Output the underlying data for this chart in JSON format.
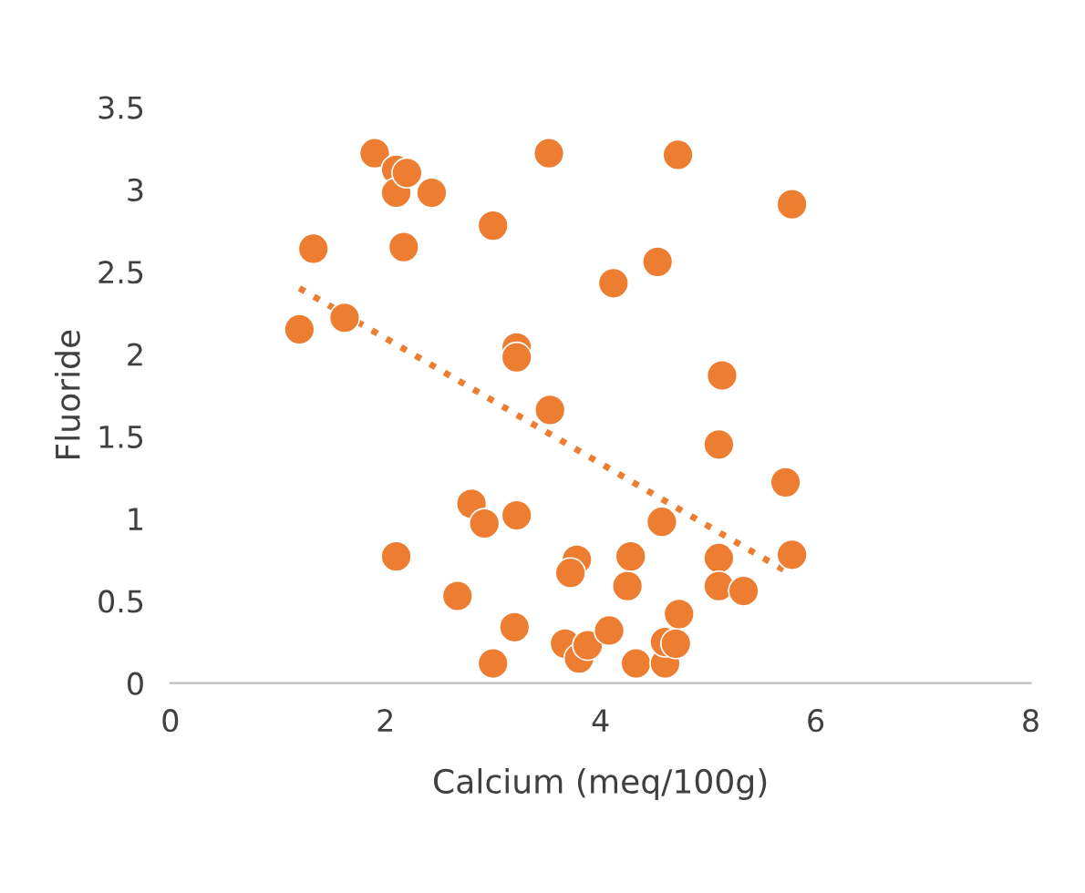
{
  "chart_data": {
    "type": "scatter",
    "xlabel": "Calcium (meq/100g)",
    "ylabel": "Fluoride",
    "xlim": [
      0,
      8
    ],
    "ylim": [
      0,
      3.5
    ],
    "xticks": [
      0,
      2,
      4,
      6,
      8
    ],
    "yticks": [
      0,
      0.5,
      1,
      1.5,
      2,
      2.5,
      3,
      3.5
    ],
    "grid": false,
    "legend": false,
    "marker": "circle",
    "series": [
      {
        "color": "#ed7d31",
        "x": [
          1.2,
          1.33,
          1.62,
          1.9,
          2.1,
          2.1,
          2.2,
          2.17,
          2.43,
          2.1,
          3.0,
          3.52,
          4.12,
          4.53,
          4.72,
          5.78,
          3.22,
          3.22,
          3.53,
          5.13,
          5.1,
          5.72,
          2.8,
          2.92,
          3.22,
          2.67,
          3.2,
          3.0,
          3.78,
          3.72,
          3.67,
          3.8,
          3.88,
          4.08,
          4.25,
          4.28,
          4.57,
          4.33,
          4.6,
          4.6,
          4.7,
          4.73,
          5.1,
          5.1,
          5.33,
          5.78
        ],
        "values": [
          2.15,
          2.64,
          2.22,
          3.22,
          3.12,
          2.98,
          3.1,
          2.65,
          2.98,
          0.77,
          2.78,
          3.22,
          2.43,
          2.56,
          3.21,
          2.91,
          2.04,
          1.98,
          1.66,
          1.87,
          1.45,
          1.22,
          1.09,
          0.97,
          1.02,
          0.53,
          0.34,
          0.12,
          0.75,
          0.67,
          0.24,
          0.15,
          0.23,
          0.32,
          0.59,
          0.77,
          0.98,
          0.12,
          0.12,
          0.25,
          0.24,
          0.42,
          0.76,
          0.59,
          0.56,
          0.78
        ]
      },
      {
        "type": "line",
        "color": "#ed7d31",
        "line_style": "dotted",
        "marker": "none",
        "x": [
          1.2,
          5.75
        ],
        "values": [
          2.4,
          0.67
        ]
      }
    ]
  }
}
